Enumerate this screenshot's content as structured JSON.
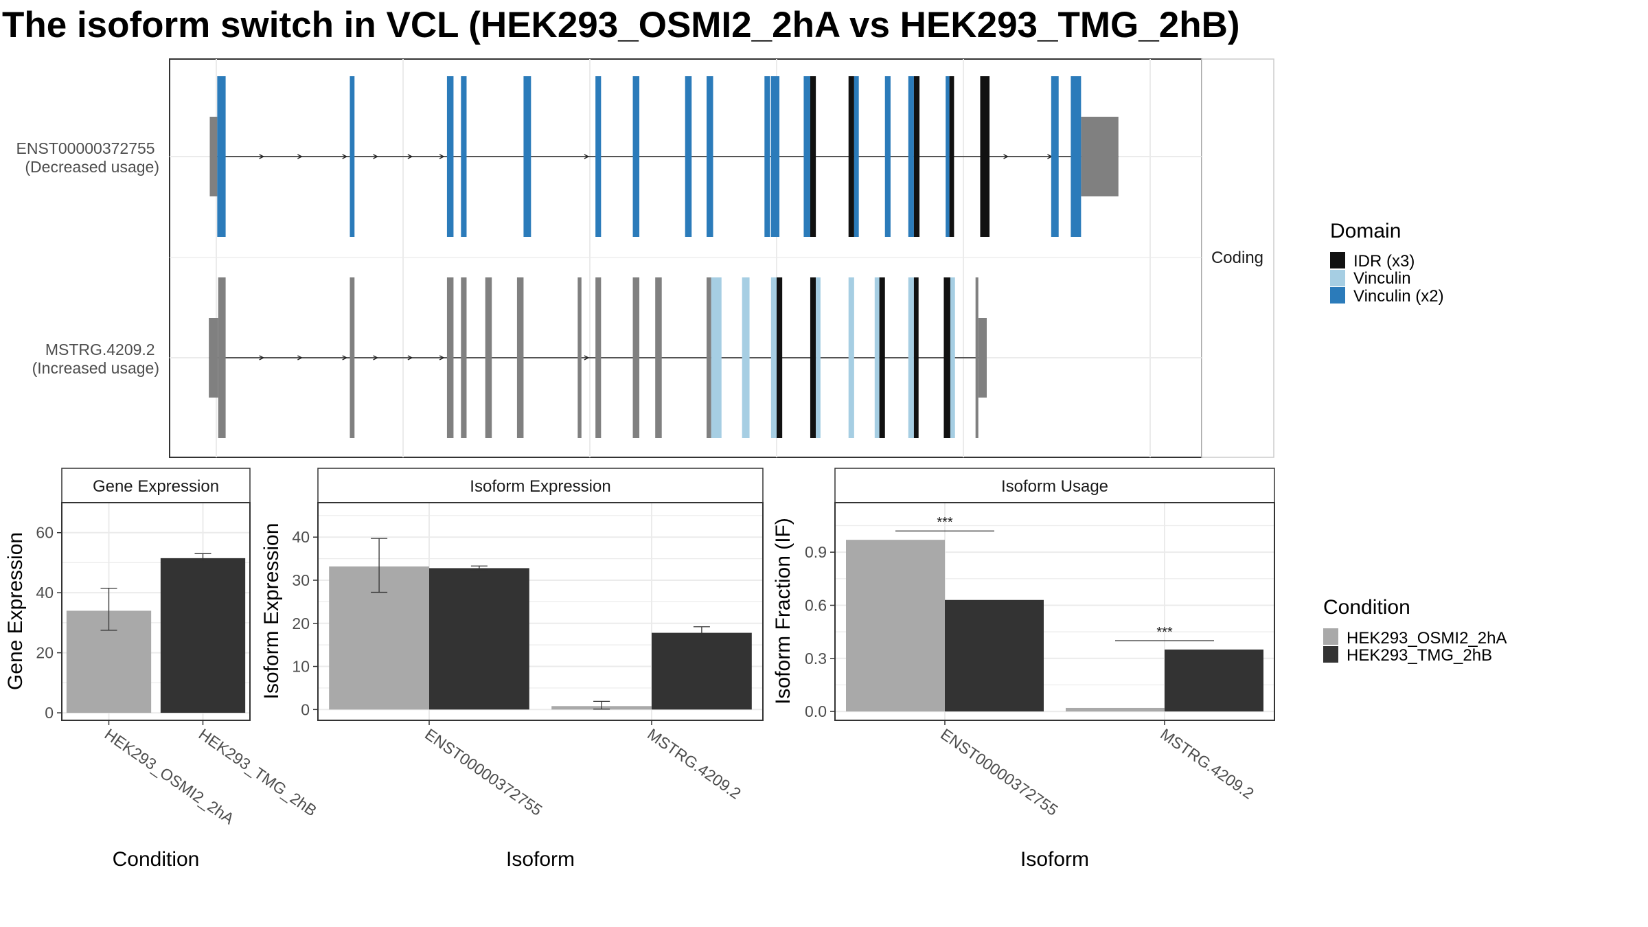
{
  "title": "The isoform switch in VCL (HEK293_OSMI2_2hA vs HEK293_TMG_2hB)",
  "colors": {
    "idr": "#111111",
    "vinculin": "#a6cee3",
    "vinculin_x2": "#2b7bba",
    "no_domain": "#808080",
    "condition_a": "#a9a9a9",
    "condition_b": "#333333",
    "grid": "#ebebeb",
    "frame": "#333333"
  },
  "legends": {
    "domain": {
      "title": "Domain",
      "items": [
        {
          "label": "IDR (x3)",
          "color": "#111111"
        },
        {
          "label": "Vinculin",
          "color": "#a6cee3"
        },
        {
          "label": "Vinculin (x2)",
          "color": "#2b7bba"
        }
      ]
    },
    "condition": {
      "title": "Condition",
      "items": [
        {
          "label": "HEK293_OSMI2_2hA",
          "color": "#a9a9a9"
        },
        {
          "label": "HEK293_TMG_2hB",
          "color": "#333333"
        }
      ]
    }
  },
  "chart_data": [
    {
      "type": "gene-structure",
      "facet_label": "Coding",
      "x_range": [
        0,
        100
      ],
      "tracks": [
        {
          "label_line1": "ENST00000372755",
          "label_line2": "(Decreased usage)",
          "utr_start": [
            [
              -0.7,
              0.1
            ]
          ],
          "utr_end": [
            [
              92.6,
              96.6
            ]
          ],
          "exons": [
            [
              0.1,
              1.0,
              "vinculin_x2"
            ],
            [
              14.3,
              14.8,
              "vinculin_x2"
            ],
            [
              24.7,
              25.4,
              "vinculin_x2"
            ],
            [
              26.2,
              26.8,
              "vinculin_x2"
            ],
            [
              32.9,
              33.7,
              "vinculin_x2"
            ],
            [
              40.6,
              41.2,
              "vinculin_x2"
            ],
            [
              44.6,
              45.3,
              "vinculin_x2"
            ],
            [
              50.2,
              50.9,
              "vinculin_x2"
            ],
            [
              52.5,
              53.2,
              "vinculin_x2"
            ],
            [
              58.7,
              59.3,
              "vinculin_x2"
            ],
            [
              59.4,
              60.3,
              "vinculin_x2"
            ],
            [
              62.9,
              63.6,
              "vinculin_x2"
            ],
            [
              63.6,
              64.2,
              "idr"
            ],
            [
              67.7,
              68.3,
              "idr"
            ],
            [
              68.3,
              68.8,
              "vinculin_x2"
            ],
            [
              71.6,
              72.2,
              "vinculin_x2"
            ],
            [
              74.1,
              74.7,
              "vinculin_x2"
            ],
            [
              74.7,
              75.3,
              "idr"
            ],
            [
              78.1,
              78.5,
              "vinculin_x2"
            ],
            [
              78.5,
              79.0,
              "idr"
            ],
            [
              81.8,
              82.8,
              "idr"
            ],
            [
              89.4,
              90.2,
              "vinculin_x2"
            ],
            [
              91.5,
              92.1,
              "vinculin_x2"
            ],
            [
              92.0,
              92.6,
              "vinculin_x2"
            ]
          ],
          "arrows": [
            4.9,
            9.0,
            13.8,
            17.1,
            20.8,
            24.2,
            39.7,
            84.6,
            89.3
          ]
        },
        {
          "label_line1": "MSTRG.4209.2",
          "label_line2": "(Increased usage)",
          "utr_start": [
            [
              -0.8,
              0.2
            ]
          ],
          "utr_end": [
            [
              81.6,
              82.5
            ]
          ],
          "exons": [
            [
              0.2,
              1.0,
              "none"
            ],
            [
              14.3,
              14.8,
              "none"
            ],
            [
              24.7,
              25.4,
              "none"
            ],
            [
              26.2,
              26.8,
              "none"
            ],
            [
              28.8,
              29.5,
              "none"
            ],
            [
              32.2,
              32.9,
              "none"
            ],
            [
              38.7,
              39.1,
              "none"
            ],
            [
              40.6,
              41.2,
              "none"
            ],
            [
              44.6,
              45.3,
              "none"
            ],
            [
              47.0,
              47.7,
              "none"
            ],
            [
              52.5,
              53.0,
              "none"
            ],
            [
              53.0,
              54.1,
              "vinculin"
            ],
            [
              56.3,
              57.1,
              "vinculin"
            ],
            [
              59.4,
              60.0,
              "vinculin"
            ],
            [
              60.0,
              60.6,
              "idr"
            ],
            [
              63.6,
              64.2,
              "idr"
            ],
            [
              64.2,
              64.7,
              "vinculin"
            ],
            [
              67.7,
              68.3,
              "vinculin"
            ],
            [
              70.5,
              71.0,
              "vinculin"
            ],
            [
              71.0,
              71.6,
              "idr"
            ],
            [
              74.1,
              74.7,
              "vinculin"
            ],
            [
              74.7,
              75.2,
              "idr"
            ],
            [
              77.9,
              78.6,
              "idr"
            ],
            [
              78.6,
              79.1,
              "vinculin"
            ],
            [
              81.3,
              81.6,
              "none"
            ]
          ],
          "arrows": [
            4.9,
            9.0,
            13.8,
            17.1,
            20.8,
            24.2,
            39.7
          ]
        }
      ]
    },
    {
      "type": "bar",
      "facet_label": "Gene Expression",
      "xlabel": "Condition",
      "ylabel": "Gene Expression",
      "ylim": [
        -2.5,
        70
      ],
      "yticks": [
        0,
        20,
        40,
        60
      ],
      "categories": [
        "HEK293_OSMI2_2hA",
        "HEK293_TMG_2hB"
      ],
      "values": [
        34.0,
        51.5
      ],
      "errors": [
        [
          27.5,
          41.5
        ],
        [
          50.3,
          53.0
        ]
      ]
    },
    {
      "type": "bar",
      "facet_label": "Isoform Expression",
      "xlabel": "Isoform",
      "ylabel": "Isoform Expression",
      "ylim": [
        -2.5,
        48
      ],
      "yticks": [
        0,
        10,
        20,
        30,
        40
      ],
      "categories": [
        "ENST00000372755",
        "MSTRG.4209.2"
      ],
      "series": [
        {
          "name": "HEK293_OSMI2_2hA",
          "values": [
            33.2,
            0.8
          ],
          "errors": [
            [
              27.2,
              39.7
            ],
            [
              0.1,
              1.9
            ]
          ]
        },
        {
          "name": "HEK293_TMG_2hB",
          "values": [
            32.8,
            17.8
          ],
          "errors": [
            [
              32.4,
              33.3
            ],
            [
              16.8,
              19.2
            ]
          ]
        }
      ]
    },
    {
      "type": "bar",
      "facet_label": "Isoform Usage",
      "xlabel": "Isoform",
      "ylabel": "Isoform Fraction (IF)",
      "ylim": [
        -0.05,
        1.18
      ],
      "yticks": [
        "0.0",
        "0.3",
        "0.6",
        "0.9"
      ],
      "categories": [
        "ENST00000372755",
        "MSTRG.4209.2"
      ],
      "series": [
        {
          "name": "HEK293_OSMI2_2hA",
          "values": [
            0.97,
            0.02
          ]
        },
        {
          "name": "HEK293_TMG_2hB",
          "values": [
            0.63,
            0.35
          ]
        }
      ],
      "annotations": [
        {
          "category": "ENST00000372755",
          "text": "***",
          "y": 1.02
        },
        {
          "category": "MSTRG.4209.2",
          "text": "***",
          "y": 0.4
        }
      ]
    }
  ]
}
